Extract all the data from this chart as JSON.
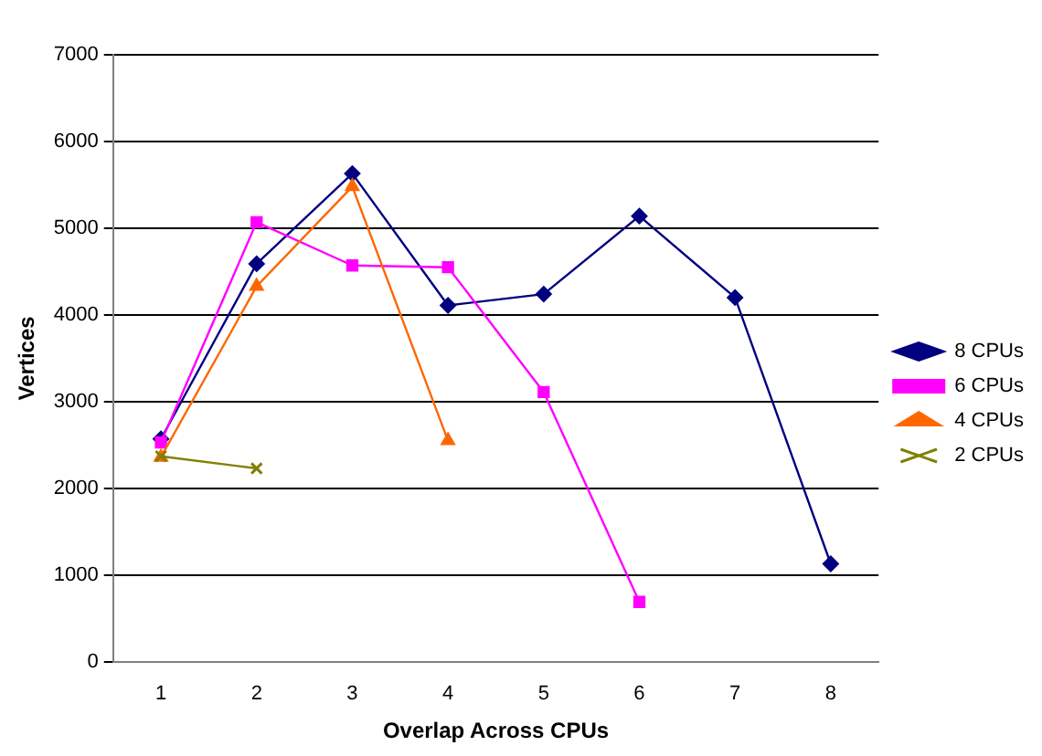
{
  "chart_data": {
    "type": "line",
    "xlabel": "Overlap Across CPUs",
    "ylabel": "Vertices",
    "categories": [
      "1",
      "2",
      "3",
      "4",
      "5",
      "6",
      "7",
      "8"
    ],
    "series": [
      {
        "name": "8 CPUs",
        "color": "#000080",
        "marker": "diamond",
        "values": [
          2570,
          4590,
          5630,
          4110,
          4240,
          5140,
          4200,
          1130
        ]
      },
      {
        "name": "6 CPUs",
        "color": "#ff00ff",
        "marker": "square",
        "values": [
          2530,
          5070,
          4570,
          4550,
          3110,
          690,
          null,
          null
        ]
      },
      {
        "name": "4 CPUs",
        "color": "#ff6600",
        "marker": "triangle",
        "values": [
          2360,
          4330,
          5480,
          2550,
          null,
          null,
          null,
          null
        ]
      },
      {
        "name": "2 CPUs",
        "color": "#808000",
        "marker": "cross",
        "values": [
          2370,
          2230,
          null,
          null,
          null,
          null,
          null,
          null
        ]
      }
    ],
    "ylim": [
      0,
      7000
    ],
    "yticks": [
      0,
      1000,
      2000,
      3000,
      4000,
      5000,
      6000,
      7000
    ],
    "grid": "y",
    "legend": "right"
  }
}
